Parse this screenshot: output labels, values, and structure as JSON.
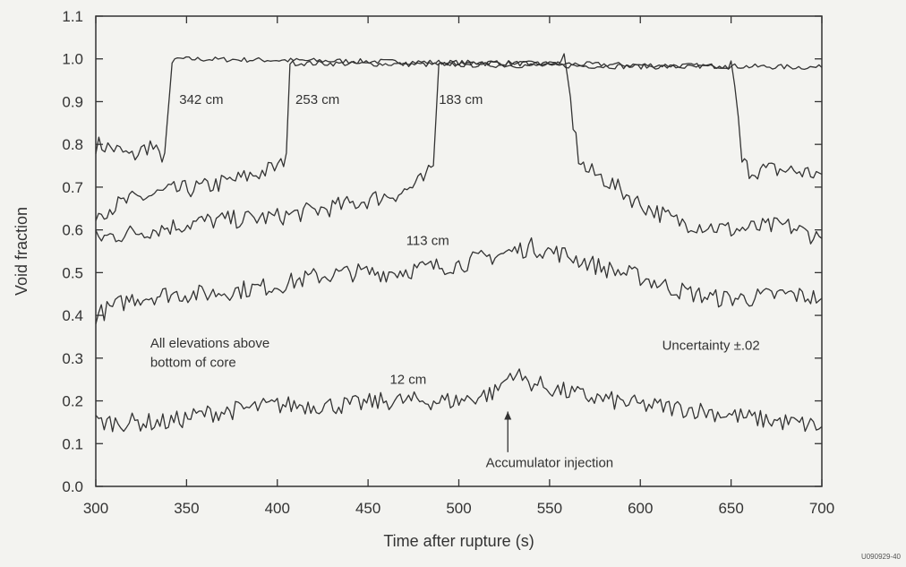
{
  "chart_data": {
    "type": "line",
    "title": "",
    "xlabel": "Time after rupture (s)",
    "ylabel": "Void fraction",
    "xlim": [
      300,
      700
    ],
    "ylim": [
      0.0,
      1.1
    ],
    "xticks": [
      300,
      350,
      400,
      450,
      500,
      550,
      600,
      650,
      700
    ],
    "yticks": [
      0.0,
      0.1,
      0.2,
      0.3,
      0.4,
      0.5,
      0.6,
      0.7,
      0.8,
      0.9,
      1.0,
      1.1
    ],
    "tick_labels_x": [
      "300",
      "350",
      "400",
      "450",
      "500",
      "550",
      "600",
      "650",
      "700"
    ],
    "tick_labels_y": [
      "0.0",
      "0.1",
      "0.2",
      "0.3",
      "0.4",
      "0.5",
      "0.6",
      "0.7",
      "0.8",
      "0.9",
      "1.0",
      "1.1"
    ],
    "grid": false,
    "series": [
      {
        "name": "342 cm",
        "points": [
          [
            300,
            0.8
          ],
          [
            310,
            0.79
          ],
          [
            320,
            0.77
          ],
          [
            330,
            0.8
          ],
          [
            335,
            0.77
          ],
          [
            338,
            0.78
          ],
          [
            342,
            0.99
          ],
          [
            345,
            1.0
          ],
          [
            700,
            0.98
          ]
        ]
      },
      {
        "name": "253 cm",
        "points": [
          [
            300,
            0.64
          ],
          [
            320,
            0.67
          ],
          [
            340,
            0.69
          ],
          [
            360,
            0.7
          ],
          [
            380,
            0.72
          ],
          [
            395,
            0.74
          ],
          [
            402,
            0.75
          ],
          [
            405,
            0.78
          ],
          [
            407,
            0.99
          ],
          [
            410,
            0.99
          ],
          [
            650,
            0.98
          ],
          [
            652,
            0.93
          ],
          [
            654,
            0.85
          ],
          [
            656,
            0.76
          ],
          [
            660,
            0.74
          ],
          [
            680,
            0.74
          ],
          [
            700,
            0.73
          ]
        ]
      },
      {
        "name": "183 cm",
        "points": [
          [
            300,
            0.58
          ],
          [
            330,
            0.6
          ],
          [
            360,
            0.62
          ],
          [
            400,
            0.63
          ],
          [
            440,
            0.66
          ],
          [
            470,
            0.69
          ],
          [
            482,
            0.72
          ],
          [
            486,
            0.75
          ],
          [
            489,
            0.99
          ],
          [
            492,
            0.99
          ],
          [
            558,
            0.99
          ],
          [
            560,
            0.95
          ],
          [
            563,
            0.85
          ],
          [
            566,
            0.77
          ],
          [
            570,
            0.74
          ],
          [
            580,
            0.72
          ],
          [
            600,
            0.66
          ],
          [
            620,
            0.62
          ],
          [
            650,
            0.6
          ],
          [
            680,
            0.61
          ],
          [
            700,
            0.58
          ]
        ]
      },
      {
        "name": "113 cm",
        "points": [
          [
            300,
            0.4
          ],
          [
            320,
            0.44
          ],
          [
            340,
            0.45
          ],
          [
            360,
            0.45
          ],
          [
            380,
            0.46
          ],
          [
            400,
            0.47
          ],
          [
            420,
            0.49
          ],
          [
            440,
            0.5
          ],
          [
            460,
            0.5
          ],
          [
            480,
            0.51
          ],
          [
            500,
            0.52
          ],
          [
            520,
            0.54
          ],
          [
            540,
            0.56
          ],
          [
            560,
            0.54
          ],
          [
            580,
            0.51
          ],
          [
            600,
            0.49
          ],
          [
            620,
            0.46
          ],
          [
            640,
            0.44
          ],
          [
            660,
            0.44
          ],
          [
            680,
            0.45
          ],
          [
            700,
            0.44
          ]
        ]
      },
      {
        "name": "12 cm",
        "points": [
          [
            300,
            0.15
          ],
          [
            320,
            0.15
          ],
          [
            340,
            0.15
          ],
          [
            360,
            0.17
          ],
          [
            380,
            0.18
          ],
          [
            400,
            0.19
          ],
          [
            420,
            0.19
          ],
          [
            440,
            0.19
          ],
          [
            460,
            0.2
          ],
          [
            480,
            0.2
          ],
          [
            500,
            0.2
          ],
          [
            520,
            0.22
          ],
          [
            530,
            0.27
          ],
          [
            535,
            0.25
          ],
          [
            550,
            0.23
          ],
          [
            570,
            0.21
          ],
          [
            600,
            0.19
          ],
          [
            630,
            0.18
          ],
          [
            660,
            0.16
          ],
          [
            680,
            0.15
          ],
          [
            700,
            0.14
          ]
        ]
      }
    ],
    "annotations": {
      "label_342": {
        "text": "342 cm",
        "x": 346,
        "y": 0.895
      },
      "label_253": {
        "text": "253 cm",
        "x": 410,
        "y": 0.895
      },
      "label_183": {
        "text": "183 cm",
        "x": 489,
        "y": 0.895
      },
      "label_113": {
        "text": "113 cm",
        "x": 471,
        "y": 0.565
      },
      "label_12": {
        "text": "12 cm",
        "x": 462,
        "y": 0.24
      },
      "elevations_line1": {
        "text": "All elevations above",
        "x": 330,
        "y": 0.325
      },
      "elevations_line2": {
        "text": "bottom of core",
        "x": 330,
        "y": 0.28
      },
      "uncertainty": {
        "text": "Uncertainty ±.02",
        "x": 612,
        "y": 0.32
      },
      "accumulator": {
        "text": "Accumulator injection",
        "x": 550,
        "y": 0.045,
        "arrow_from": 0.08,
        "arrow_to": 0.175,
        "arrow_x": 527
      }
    },
    "reference_code": "U090929-40"
  },
  "colors": {
    "background": "#f3f3f0",
    "ink": "#333333"
  }
}
